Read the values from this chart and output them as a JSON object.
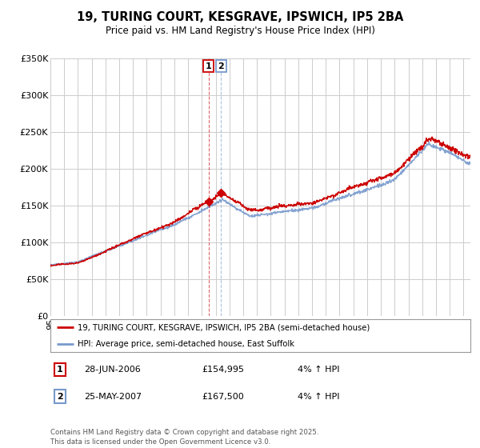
{
  "title": "19, TURING COURT, KESGRAVE, IPSWICH, IP5 2BA",
  "subtitle": "Price paid vs. HM Land Registry's House Price Index (HPI)",
  "ylabel_ticks": [
    "£0",
    "£50K",
    "£100K",
    "£150K",
    "£200K",
    "£250K",
    "£300K",
    "£350K"
  ],
  "ytick_values": [
    0,
    50000,
    100000,
    150000,
    200000,
    250000,
    300000,
    350000
  ],
  "ylim": [
    0,
    350000
  ],
  "xlim_start": 1995.0,
  "xlim_end": 2025.5,
  "red_line_color": "#cc0000",
  "blue_line_color": "#7799cc",
  "grid_color": "#cccccc",
  "point1_date": "28-JUN-2006",
  "point1_price": 154995,
  "point1_hpi_change": "4% ↑ HPI",
  "point1_year": 2006.49,
  "point2_date": "25-MAY-2007",
  "point2_price": 167500,
  "point2_hpi_change": "4% ↑ HPI",
  "point2_year": 2007.4,
  "legend_label_red": "19, TURING COURT, KESGRAVE, IPSWICH, IP5 2BA (semi-detached house)",
  "legend_label_blue": "HPI: Average price, semi-detached house, East Suffolk",
  "footer": "Contains HM Land Registry data © Crown copyright and database right 2025.\nThis data is licensed under the Open Government Licence v3.0.",
  "background_color": "#ffffff",
  "plot_bg_color": "#ffffff"
}
